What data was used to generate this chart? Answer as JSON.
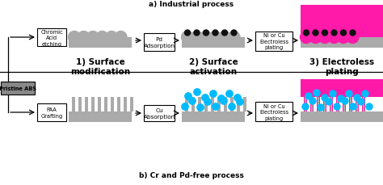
{
  "title_a": "a) Industrial process",
  "title_b": "b) Cr and Pd-free process",
  "label1": "1) Surface\nmodification",
  "label2": "2) Surface\nactivation",
  "label3": "3) Electroless\nplating",
  "pristine_abs": "Pristine ABS",
  "chromic_acid": "Chromic\nAcid\netching",
  "paa_grafting": "PAA\nGrafting",
  "pd_adsorption": "Pd\nAdsorption",
  "cu_absorption": "Cu\nAbsorption",
  "ni_cu_1": "Ni or Cu\nElectroless\nplating",
  "ni_cu_2": "Ni or Cu\nElectroless\nplating",
  "gray_light": "#aaaaaa",
  "gray_dark": "#888888",
  "magenta": "#ff1aaa",
  "cyan_dot": "#00bbff",
  "black_dot": "#111111",
  "white": "#ffffff",
  "bg": "#ffffff",
  "arrow_color": "#000000"
}
